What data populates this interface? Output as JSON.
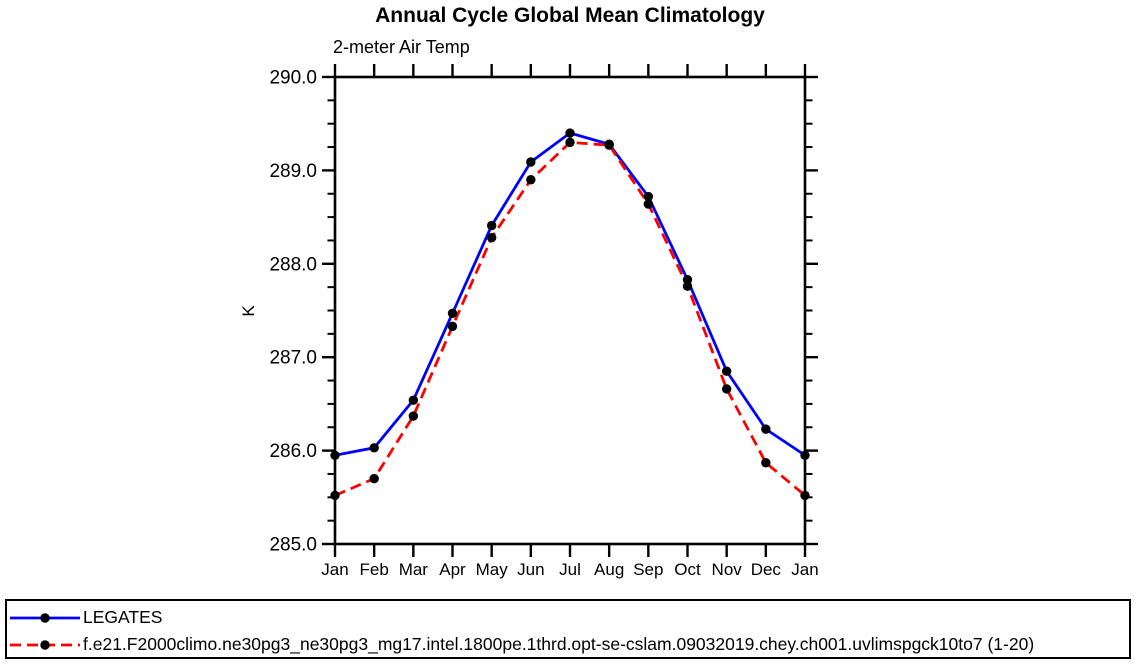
{
  "chart_data": {
    "type": "line",
    "title": "Annual Cycle Global Mean Climatology",
    "subtitle": "2-meter Air Temp",
    "ylabel": "K",
    "categories": [
      "Jan",
      "Feb",
      "Mar",
      "Apr",
      "May",
      "Jun",
      "Jul",
      "Aug",
      "Sep",
      "Oct",
      "Nov",
      "Dec",
      "Jan"
    ],
    "ylim": [
      285.0,
      290.0
    ],
    "y_major_step": 1.0,
    "y_minor_step": 0.25,
    "y_tick_labels": [
      "285.0",
      "286.0",
      "287.0",
      "288.0",
      "289.0",
      "290.0"
    ],
    "grid": false,
    "legend_position": "bottom-left",
    "axis_color": "#000000",
    "marker_color": "#000000",
    "series": [
      {
        "name": "LEGATES",
        "color": "#0000ff",
        "line_style": "solid",
        "marker": "filled-circle",
        "values": [
          285.95,
          286.03,
          286.54,
          287.47,
          288.41,
          289.09,
          289.4,
          289.28,
          288.72,
          287.83,
          286.85,
          286.23,
          285.95
        ]
      },
      {
        "name": "f.e21.F2000climo.ne30pg3_ne30pg3_mg17.intel.1800pe.1thrd.opt-se-cslam.09032019.chey.ch001.uvlimspgck10to7 (1-20)",
        "color": "#ff0000",
        "line_style": "dashed",
        "marker": "filled-circle",
        "values": [
          285.52,
          285.7,
          286.37,
          287.33,
          288.28,
          288.9,
          289.3,
          289.27,
          288.64,
          287.76,
          286.66,
          285.87,
          285.52
        ]
      }
    ]
  }
}
